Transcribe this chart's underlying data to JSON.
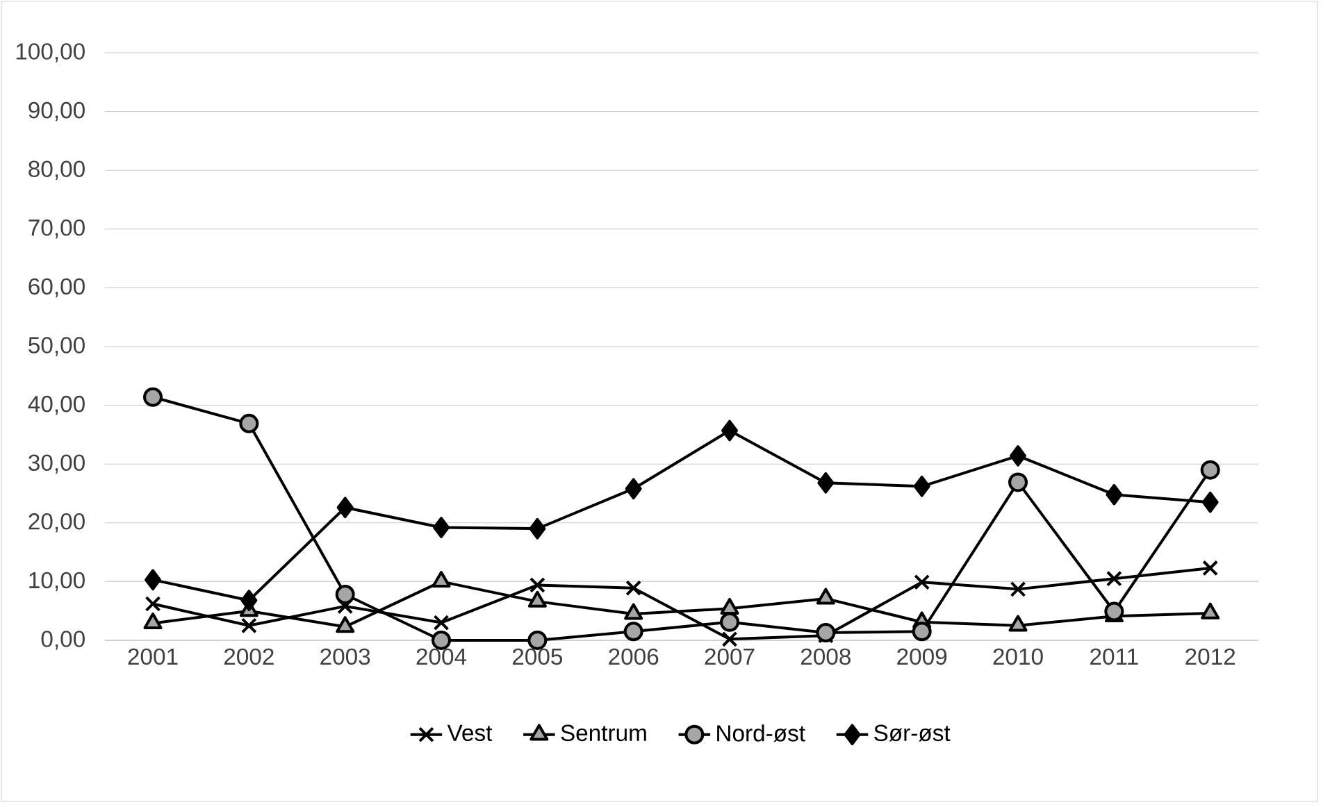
{
  "chart_data": {
    "type": "line",
    "categories": [
      "2001",
      "2002",
      "2003",
      "2004",
      "2005",
      "2006",
      "2007",
      "2008",
      "2009",
      "2010",
      "2011",
      "2012"
    ],
    "series": [
      {
        "name": "Vest",
        "color": "#000000",
        "marker": "cross",
        "values": [
          6.2,
          2.5,
          5.8,
          3.0,
          9.4,
          8.9,
          0.2,
          0.8,
          9.9,
          8.7,
          10.5,
          12.3
        ]
      },
      {
        "name": "Sentrum",
        "color": "#000000",
        "marker": "triangle",
        "values": [
          2.9,
          5.0,
          2.3,
          10.0,
          6.6,
          4.5,
          5.4,
          7.1,
          3.1,
          2.5,
          4.1,
          4.6
        ]
      },
      {
        "name": "Nord-øst",
        "color": "#000000",
        "marker": "circle",
        "values": [
          41.4,
          36.9,
          7.8,
          0.0,
          0.0,
          1.5,
          3.1,
          1.3,
          1.5,
          26.9,
          4.9,
          29.0
        ]
      },
      {
        "name": "Sør-øst",
        "color": "#000000",
        "marker": "diamond",
        "values": [
          10.3,
          6.8,
          22.6,
          19.2,
          19.0,
          25.8,
          35.7,
          26.8,
          26.2,
          31.4,
          24.8,
          23.5
        ]
      }
    ],
    "ylim": [
      0,
      100
    ],
    "yticks": [
      {
        "value": 0,
        "label": "0,00"
      },
      {
        "value": 10,
        "label": "10,00"
      },
      {
        "value": 20,
        "label": "20,00"
      },
      {
        "value": 30,
        "label": "30,00"
      },
      {
        "value": 40,
        "label": "40,00"
      },
      {
        "value": 50,
        "label": "50,00"
      },
      {
        "value": 60,
        "label": "60,00"
      },
      {
        "value": 70,
        "label": "70,00"
      },
      {
        "value": 80,
        "label": "80,00"
      },
      {
        "value": 90,
        "label": "90,00"
      },
      {
        "value": 100,
        "label": "100,00"
      }
    ],
    "grid": "y",
    "legend": "bottom",
    "line_style": "solid"
  }
}
